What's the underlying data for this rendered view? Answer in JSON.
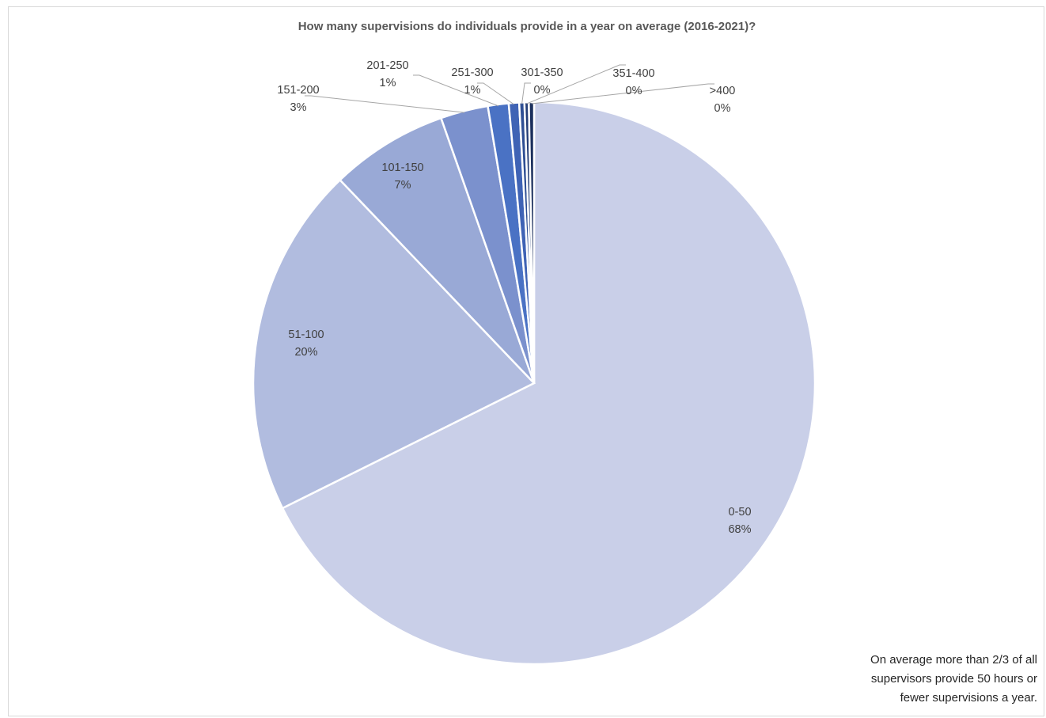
{
  "chart_data": {
    "type": "pie",
    "title": "How many supervisions do individuals provide in a year on average (2016-2021)?",
    "slices": [
      {
        "category": "0-50",
        "pct_label": "68%",
        "value": 68.0,
        "color": "#c9cfe8"
      },
      {
        "category": "51-100",
        "pct_label": "20%",
        "value": 20.3,
        "color": "#b1bcdf"
      },
      {
        "category": "101-150",
        "pct_label": "7%",
        "value": 6.8,
        "color": "#99a9d6"
      },
      {
        "category": "151-200",
        "pct_label": "3%",
        "value": 2.75,
        "color": "#7b91cd"
      },
      {
        "category": "201-250",
        "pct_label": "1%",
        "value": 1.2,
        "color": "#4a72c4"
      },
      {
        "category": "251-300",
        "pct_label": "1%",
        "value": 0.6,
        "color": "#3f63b5"
      },
      {
        "category": "301-350",
        "pct_label": "0%",
        "value": 0.3,
        "color": "#2f4f94"
      },
      {
        "category": "351-400",
        "pct_label": "0%",
        "value": 0.25,
        "color": "#243d76"
      },
      {
        "category": ">400",
        "pct_label": "0%",
        "value": 0.3,
        "color": "#1b2f5c"
      }
    ]
  },
  "note": {
    "lines": [
      "On average more than 2/3 of all",
      "supervisors provide 50 hours or",
      "fewer supervisions a year."
    ]
  }
}
